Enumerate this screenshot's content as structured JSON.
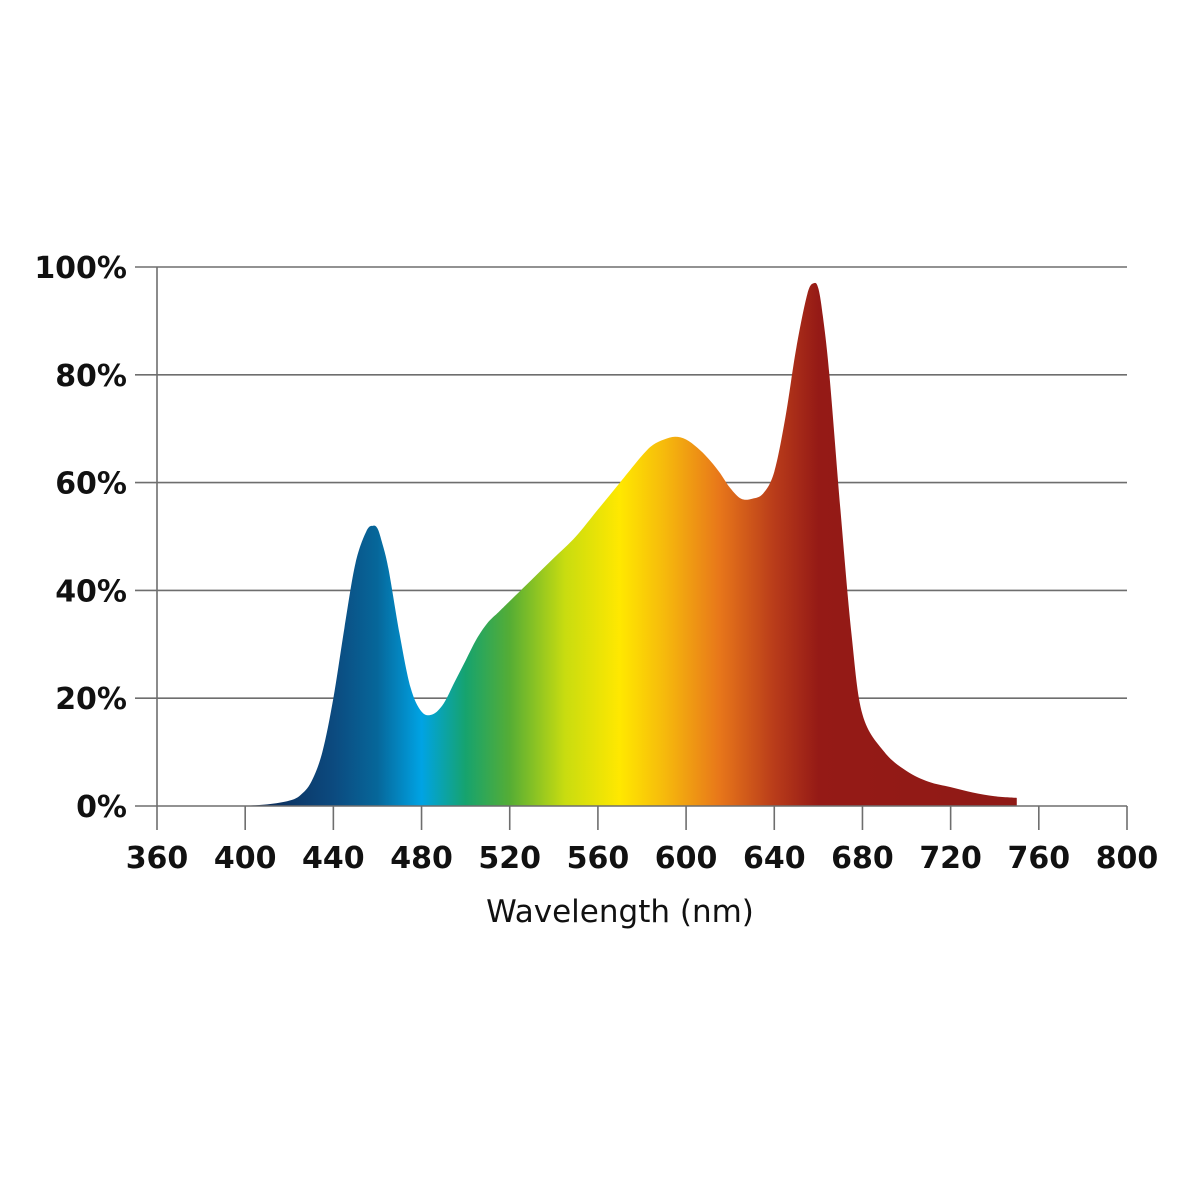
{
  "chart_data": {
    "type": "area",
    "title": "",
    "xlabel": "Wavelength (nm)",
    "ylabel": "",
    "xlim": [
      360,
      800
    ],
    "ylim": [
      0,
      100
    ],
    "grid": true,
    "x_ticks": [
      360,
      400,
      440,
      480,
      520,
      560,
      600,
      640,
      680,
      720,
      760,
      800
    ],
    "x_tick_labels": [
      "360",
      "400",
      "440",
      "480",
      "520",
      "560",
      "600",
      "640",
      "680",
      "720",
      "760",
      "800"
    ],
    "y_ticks": [
      0,
      20,
      40,
      60,
      80,
      100
    ],
    "y_tick_labels": [
      "0%",
      "20%",
      "40%",
      "60%",
      "80%",
      "100%"
    ],
    "fill": "wavelength-spectrum-gradient",
    "gradient_stops": [
      {
        "x": 400,
        "color": "#0d2550"
      },
      {
        "x": 440,
        "color": "#0c4a7f"
      },
      {
        "x": 460,
        "color": "#06679a"
      },
      {
        "x": 480,
        "color": "#00a3e4"
      },
      {
        "x": 500,
        "color": "#16a36e"
      },
      {
        "x": 520,
        "color": "#55ad35"
      },
      {
        "x": 545,
        "color": "#c8dc10"
      },
      {
        "x": 570,
        "color": "#ffe800"
      },
      {
        "x": 590,
        "color": "#f6ba0c"
      },
      {
        "x": 615,
        "color": "#e8771a"
      },
      {
        "x": 640,
        "color": "#b93c1a"
      },
      {
        "x": 660,
        "color": "#951a16"
      },
      {
        "x": 750,
        "color": "#8f1a16"
      }
    ],
    "x": [
      398,
      410,
      420,
      425,
      430,
      435,
      440,
      445,
      450,
      455,
      458,
      460,
      462,
      465,
      470,
      475,
      480,
      485,
      490,
      495,
      500,
      505,
      510,
      515,
      520,
      530,
      540,
      550,
      560,
      570,
      580,
      585,
      590,
      595,
      600,
      605,
      610,
      615,
      620,
      625,
      630,
      635,
      640,
      645,
      650,
      655,
      658,
      660,
      662,
      665,
      670,
      675,
      680,
      690,
      700,
      710,
      720,
      730,
      740,
      750
    ],
    "y": [
      0,
      0.3,
      1,
      2,
      4.5,
      10,
      20,
      33,
      45,
      51,
      52,
      51.5,
      49,
      44,
      32,
      22,
      17.5,
      17,
      19,
      23,
      27,
      31,
      34,
      36,
      38,
      42,
      46,
      50,
      55,
      60,
      65,
      67,
      68,
      68.5,
      68,
      66.5,
      64.5,
      62,
      59,
      57,
      57,
      58,
      62,
      72,
      85,
      95,
      97,
      96,
      91,
      80,
      55,
      32,
      17,
      10,
      6.5,
      4.5,
      3.5,
      2.5,
      1.8,
      1.5
    ]
  }
}
